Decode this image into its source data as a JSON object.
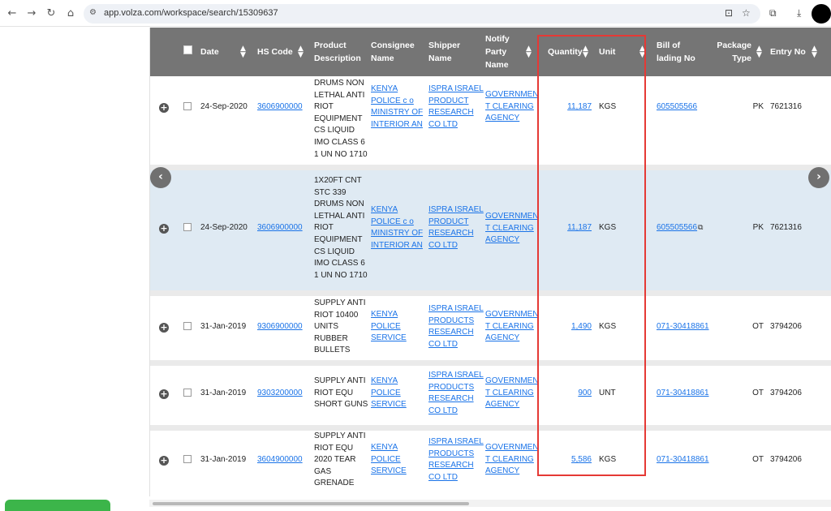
{
  "browser": {
    "url": "app.volza.com/workspace/search/15309637",
    "icons": [
      "back-icon",
      "forward-icon",
      "reload-icon",
      "home-icon",
      "site-settings-icon",
      "install-app-icon",
      "star-icon",
      "extensions-icon",
      "download-icon",
      "profile-avatar"
    ]
  },
  "table": {
    "headers": {
      "date": "Date",
      "hs_code": "HS Code",
      "product": "Product Description",
      "consignee": "Consignee Name",
      "shipper": "Shipper Name",
      "notify": "Notify Party Name",
      "quantity": "Quantity",
      "unit": "Unit",
      "bill": "Bill of lading No",
      "package": "Package Type",
      "entry": "Entry No"
    },
    "rows": [
      {
        "date": "24-Sep-2020",
        "hs": "3606900000",
        "product": [
          "DRUMS NON",
          "LETHAL ANTI",
          "RIOT",
          "EQUIPMENT",
          "CS LIQUID",
          "IMO CLASS 6",
          "1 UN NO 1710"
        ],
        "consignee": [
          "KENYA",
          "POLICE c o",
          "MINISTRY OF",
          "INTERIOR AN"
        ],
        "shipper": [
          "ISPRA ISRAEL",
          "PRODUCT",
          "RESEARCH",
          "CO LTD"
        ],
        "notify": [
          "GOVERNMEN",
          "T CLEARING",
          "AGENCY"
        ],
        "qty": "11,187",
        "unit": "KGS",
        "bill": "605505566",
        "pkg": "PK",
        "entry": "7621316"
      },
      {
        "date": "24-Sep-2020",
        "hs": "3606900000",
        "product": [
          "1X20FT CNT",
          "STC 339",
          "DRUMS NON",
          "LETHAL ANTI",
          "RIOT",
          "EQUIPMENT",
          "CS LIQUID",
          "IMO CLASS 6",
          "1 UN NO 1710"
        ],
        "consignee": [
          "KENYA",
          "POLICE c o",
          "MINISTRY OF",
          "INTERIOR AN"
        ],
        "shipper": [
          "ISPRA ISRAEL",
          "PRODUCT",
          "RESEARCH",
          "CO LTD"
        ],
        "notify": [
          "GOVERNMEN",
          "T CLEARING",
          "AGENCY"
        ],
        "qty": "11,187",
        "unit": "KGS",
        "bill": "605505566",
        "pkg": "PK",
        "entry": "7621316"
      },
      {
        "date": "31-Jan-2019",
        "hs": "9306900000",
        "product": [
          "SUPPLY ANTI",
          "RIOT 10400",
          "UNITS",
          "RUBBER",
          "BULLETS"
        ],
        "consignee": [
          "KENYA",
          "POLICE",
          "SERVICE"
        ],
        "shipper": [
          "ISPRA ISRAEL",
          "PRODUCTS",
          "RESEARCH",
          "CO LTD"
        ],
        "notify": [
          "GOVERNMEN",
          "T CLEARING",
          "AGENCY"
        ],
        "qty": "1,490",
        "unit": "KGS",
        "bill": "071-30418861",
        "pkg": "OT",
        "entry": "3794206"
      },
      {
        "date": "31-Jan-2019",
        "hs": "9303200000",
        "product": [
          "SUPPLY ANTI",
          "RIOT EQU",
          "SHORT GUNS"
        ],
        "consignee": [
          "KENYA",
          "POLICE",
          "SERVICE"
        ],
        "shipper": [
          "ISPRA ISRAEL",
          "PRODUCTS",
          "RESEARCH",
          "CO LTD"
        ],
        "notify": [
          "GOVERNMEN",
          "T CLEARING",
          "AGENCY"
        ],
        "qty": "900",
        "unit": "UNT",
        "bill": "071-30418861",
        "pkg": "OT",
        "entry": "3794206"
      },
      {
        "date": "31-Jan-2019",
        "hs": "3604900000",
        "product": [
          "SUPPLY ANTI",
          "RIOT EQU",
          "2020 TEAR",
          "GAS",
          "GRENADE"
        ],
        "consignee": [
          "KENYA",
          "POLICE",
          "SERVICE"
        ],
        "shipper": [
          "ISPRA ISRAEL",
          "PRODUCTS",
          "RESEARCH",
          "CO LTD"
        ],
        "notify": [
          "GOVERNMEN",
          "T CLEARING",
          "AGENCY"
        ],
        "qty": "5,586",
        "unit": "KGS",
        "bill": "071-30418861",
        "pkg": "OT",
        "entry": "3794206"
      }
    ]
  },
  "colors": {
    "header_bg": "#757575",
    "link": "#1a73e8",
    "highlight_row": "#dfeaf3",
    "annotation_box": "#e53935"
  }
}
